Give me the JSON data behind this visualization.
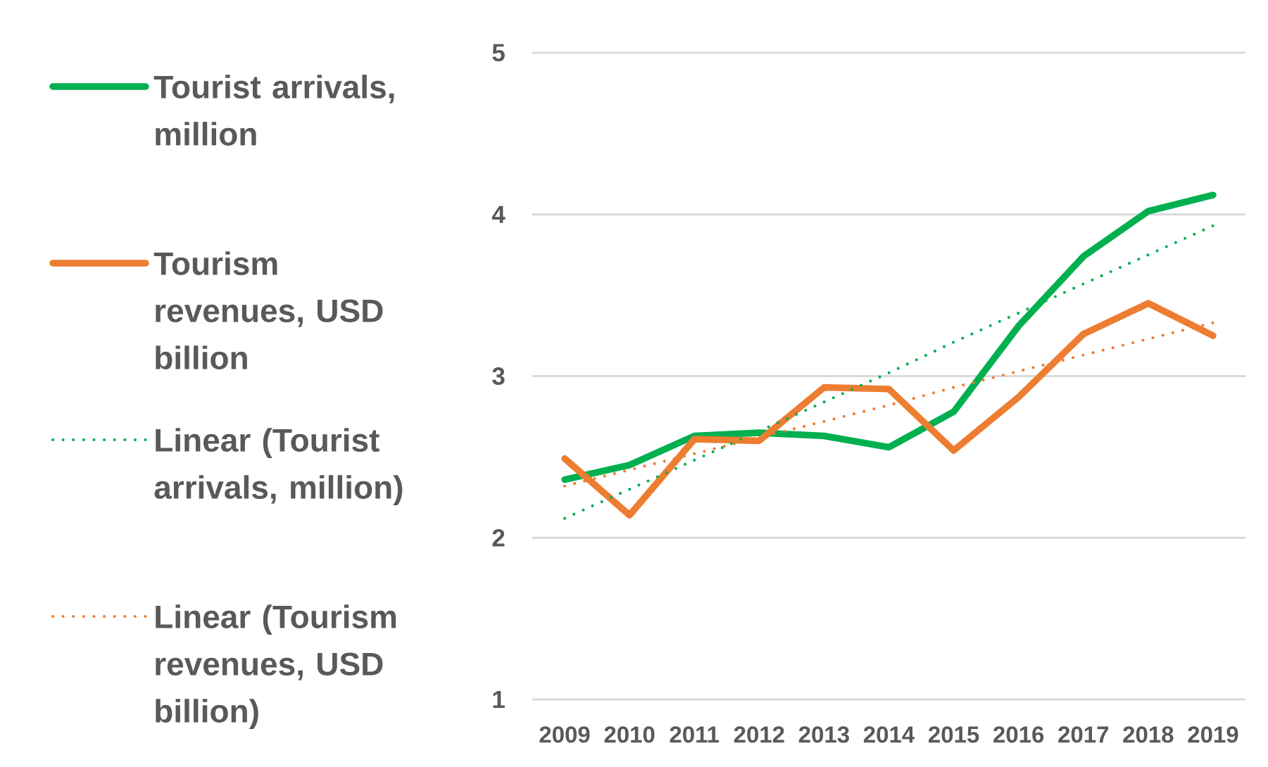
{
  "chart_data": {
    "type": "line",
    "categories": [
      "2009",
      "2010",
      "2011",
      "2012",
      "2013",
      "2014",
      "2015",
      "2016",
      "2017",
      "2018",
      "2019"
    ],
    "series": [
      {
        "name": "Tourist arrivals, million",
        "color": "#00b050",
        "values": [
          2.36,
          2.45,
          2.63,
          2.65,
          2.63,
          2.56,
          2.78,
          3.31,
          3.74,
          4.02,
          4.12
        ]
      },
      {
        "name": "Tourism revenues, USD billion",
        "color": "#ed7d31",
        "values": [
          2.49,
          2.14,
          2.61,
          2.6,
          2.93,
          2.92,
          2.54,
          2.87,
          3.26,
          3.45,
          3.25
        ]
      },
      {
        "name": "Linear (Tourist arrivals, million)",
        "color": "#00b050",
        "line_style": "dotted",
        "values": [
          2.12,
          2.3,
          2.48,
          2.66,
          2.84,
          3.02,
          3.21,
          3.39,
          3.57,
          3.75,
          3.93
        ]
      },
      {
        "name": "Linear (Tourism revenues, USD billion)",
        "color": "#ed7d31",
        "line_style": "dotted",
        "values": [
          2.32,
          2.42,
          2.52,
          2.62,
          2.72,
          2.82,
          2.93,
          3.03,
          3.13,
          3.23,
          3.33
        ]
      }
    ],
    "ylim": [
      1,
      5
    ],
    "yticks": [
      1,
      2,
      3,
      4,
      5
    ],
    "grid": "y",
    "legend": "left",
    "line_style": "solid"
  }
}
